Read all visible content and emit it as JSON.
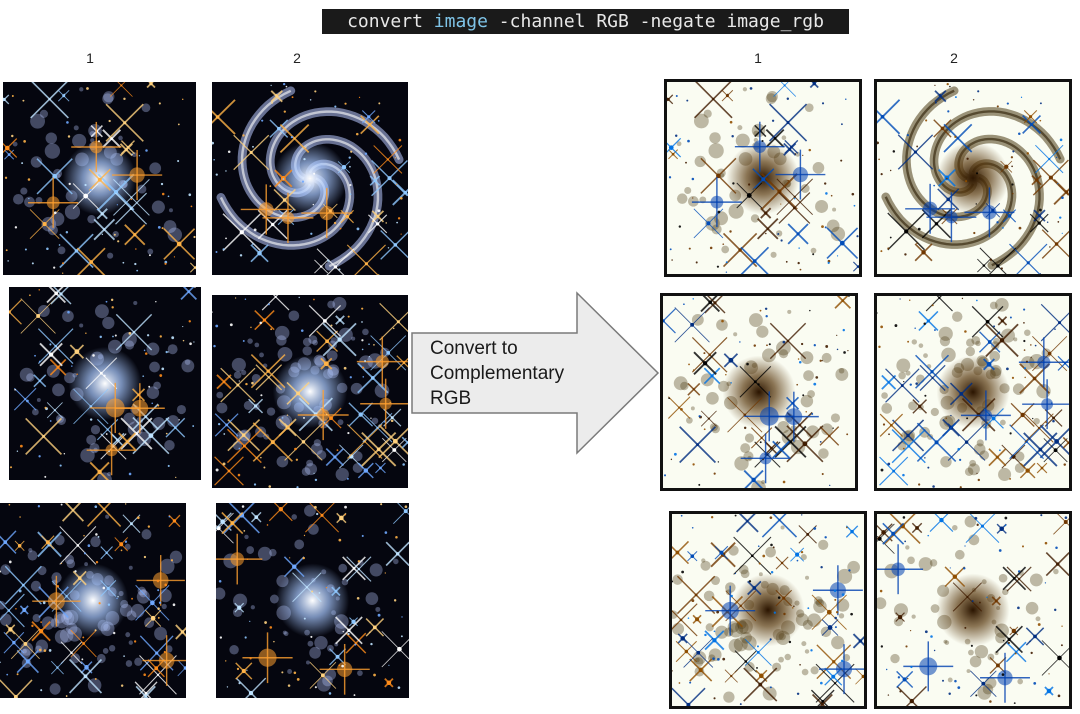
{
  "command": {
    "prefix": "convert ",
    "keyword": "image",
    "suffix": " -channel RGB -negate image_rgb"
  },
  "left_columns": [
    "1",
    "2"
  ],
  "right_columns": [
    "1",
    "2"
  ],
  "arrow_label": [
    "Convert to",
    "Complementary",
    "RGB"
  ],
  "colors": {
    "original_bg": "#05060f",
    "negated_bg": "#fafcf2",
    "arrow_fill": "#ececec",
    "arrow_stroke": "#7a7a7a"
  }
}
